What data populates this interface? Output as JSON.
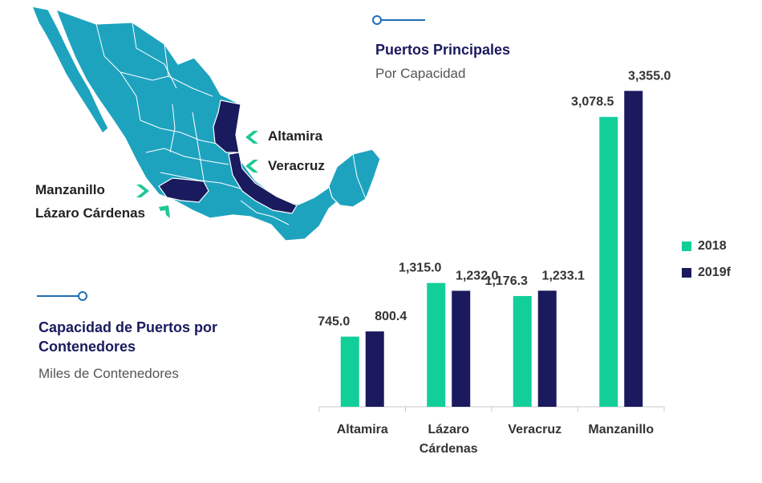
{
  "map": {
    "labels": {
      "altamira": "Altamira",
      "veracruz": "Veracruz",
      "manzanillo": "Manzanillo",
      "lazaro": "Lázaro Cárdenas"
    },
    "colors": {
      "land": "#1ea3bf",
      "highlight": "#1a1a5e",
      "arrow": "#1fc896",
      "border": "#ffffff"
    }
  },
  "top_heading": {
    "title": "Puertos Principales",
    "subtitle": "Por Capacidad"
  },
  "left_heading": {
    "title_line1": "Capacidad de Puertos por",
    "title_line2": "Contenedores",
    "subtitle": "Miles de Contenedores"
  },
  "chart_data": {
    "type": "bar",
    "categories": [
      "Altamira",
      "Lázaro Cárdenas",
      "Veracruz",
      "Manzanillo"
    ],
    "category_lines": [
      [
        "Altamira"
      ],
      [
        "Lázaro",
        "Cárdenas"
      ],
      [
        "Veracruz"
      ],
      [
        "Manzanillo"
      ]
    ],
    "series": [
      {
        "name": "2018",
        "color": "#12cf9a",
        "values": [
          745.0,
          1315.0,
          1176.3,
          3078.5
        ],
        "labels": [
          "745.0",
          "1,315.0",
          "1,176.3",
          "3,078.5"
        ]
      },
      {
        "name": "2019f",
        "color": "#1b1a5e",
        "values": [
          800.4,
          1232.0,
          1233.1,
          3355.0
        ],
        "labels": [
          "800.4",
          "1,232.0",
          "1,233.1",
          "3,355.0"
        ]
      }
    ],
    "ylim": [
      0,
      3400
    ],
    "grid": false,
    "legend": "right"
  }
}
